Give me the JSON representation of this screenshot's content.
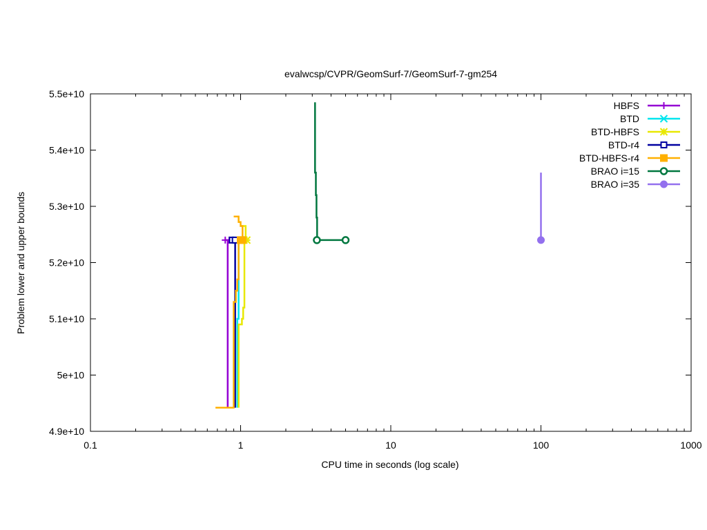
{
  "chart_data": {
    "type": "line",
    "title": "evalwcsp/CVPR/GeomSurf-7/GeomSurf-7-gm254",
    "xlabel": "CPU time in seconds (log scale)",
    "ylabel": "Problem lower and upper bounds",
    "x_scale": "log",
    "xlim": [
      0.1,
      1000
    ],
    "ylim": [
      49000000000,
      55000000000
    ],
    "x_ticks": [
      {
        "value": 0.1,
        "label": "0.1"
      },
      {
        "value": 1,
        "label": "1"
      },
      {
        "value": 10,
        "label": "10"
      },
      {
        "value": 100,
        "label": "100"
      },
      {
        "value": 1000,
        "label": "1000"
      }
    ],
    "y_ticks": [
      {
        "value": 49000000000,
        "label": "4.9e+10"
      },
      {
        "value": 50000000000,
        "label": "5e+10"
      },
      {
        "value": 51000000000,
        "label": "5.1e+10"
      },
      {
        "value": 52000000000,
        "label": "5.2e+10"
      },
      {
        "value": 53000000000,
        "label": "5.3e+10"
      },
      {
        "value": 54000000000,
        "label": "5.4e+10"
      },
      {
        "value": 55000000000,
        "label": "5.5e+10"
      }
    ],
    "grid": false,
    "legend_position": "top-right",
    "series": [
      {
        "name": "HBFS",
        "color": "#9400d3",
        "marker": "plus",
        "lower": [
          [
            0.82,
            49420000000
          ],
          [
            0.82,
            52400000000
          ]
        ],
        "upper": [
          [
            0.79,
            52400000000
          ],
          [
            0.84,
            52400000000
          ]
        ],
        "markers": [
          [
            0.79,
            52400000000
          ],
          [
            0.84,
            52400000000
          ]
        ]
      },
      {
        "name": "BTD",
        "color": "#00e5ee",
        "marker": "x",
        "lower": [
          [
            0.95,
            49420000000
          ],
          [
            0.95,
            51000000000
          ],
          [
            0.97,
            51000000000
          ],
          [
            0.97,
            52400000000
          ]
        ],
        "upper": [
          [
            0.93,
            52400000000
          ],
          [
            1.0,
            52400000000
          ]
        ],
        "markers": [
          [
            0.93,
            52400000000
          ],
          [
            1.0,
            52400000000
          ]
        ]
      },
      {
        "name": "BTD-HBFS",
        "color": "#e8e800",
        "marker": "star",
        "lower": [
          [
            0.97,
            49420000000
          ],
          [
            0.97,
            50900000000
          ],
          [
            1.02,
            50900000000
          ],
          [
            1.02,
            51000000000
          ],
          [
            1.04,
            51000000000
          ],
          [
            1.04,
            51200000000
          ],
          [
            1.06,
            51200000000
          ],
          [
            1.06,
            52400000000
          ]
        ],
        "upper": [
          [
            1.0,
            52650000000
          ],
          [
            1.08,
            52650000000
          ],
          [
            1.08,
            52400000000
          ],
          [
            1.1,
            52400000000
          ]
        ],
        "markers": [
          [
            1.05,
            52400000000
          ],
          [
            1.1,
            52400000000
          ]
        ]
      },
      {
        "name": "BTD-r4",
        "color": "#0000a0",
        "marker": "square",
        "lower": [
          [
            0.92,
            49420000000
          ],
          [
            0.92,
            52400000000
          ]
        ],
        "upper": [
          [
            0.88,
            52400000000
          ],
          [
            0.94,
            52400000000
          ]
        ],
        "markers": [
          [
            0.88,
            52400000000
          ],
          [
            0.92,
            52400000000
          ]
        ]
      },
      {
        "name": "BTD-HBFS-r4",
        "color": "#ffb000",
        "marker": "filled-square",
        "lower": [
          [
            0.68,
            49420000000
          ],
          [
            0.9,
            49420000000
          ],
          [
            0.9,
            51300000000
          ],
          [
            0.93,
            51300000000
          ],
          [
            0.93,
            51500000000
          ],
          [
            0.95,
            51500000000
          ],
          [
            0.95,
            51700000000
          ],
          [
            0.97,
            51700000000
          ],
          [
            0.97,
            52400000000
          ]
        ],
        "upper": [
          [
            0.9,
            52820000000
          ],
          [
            0.97,
            52820000000
          ],
          [
            0.97,
            52720000000
          ],
          [
            1.0,
            52720000000
          ],
          [
            1.0,
            52650000000
          ],
          [
            1.03,
            52650000000
          ],
          [
            1.03,
            52400000000
          ]
        ],
        "markers": [
          [
            1.0,
            52400000000
          ],
          [
            1.03,
            52400000000
          ]
        ]
      },
      {
        "name": "BRAO i=15",
        "color": "#00773f",
        "marker": "circle",
        "lower": [
          [
            3.2,
            52400000000
          ],
          [
            5.0,
            52400000000
          ]
        ],
        "upper": [
          [
            3.13,
            54850000000
          ],
          [
            3.13,
            53600000000
          ],
          [
            3.17,
            53600000000
          ],
          [
            3.17,
            53200000000
          ],
          [
            3.2,
            53200000000
          ],
          [
            3.2,
            52800000000
          ],
          [
            3.23,
            52800000000
          ],
          [
            3.23,
            52400000000
          ]
        ],
        "markers": [
          [
            3.22,
            52400000000
          ],
          [
            5.0,
            52400000000
          ]
        ]
      },
      {
        "name": "BRAO i=35",
        "color": "#9370ee",
        "marker": "filled-circle",
        "lower": [
          [
            100,
            52400000000
          ],
          [
            100,
            52400000000
          ]
        ],
        "upper": [
          [
            100,
            53600000000
          ],
          [
            100,
            52400000000
          ]
        ],
        "markers": [
          [
            100,
            52400000000
          ]
        ]
      }
    ]
  }
}
